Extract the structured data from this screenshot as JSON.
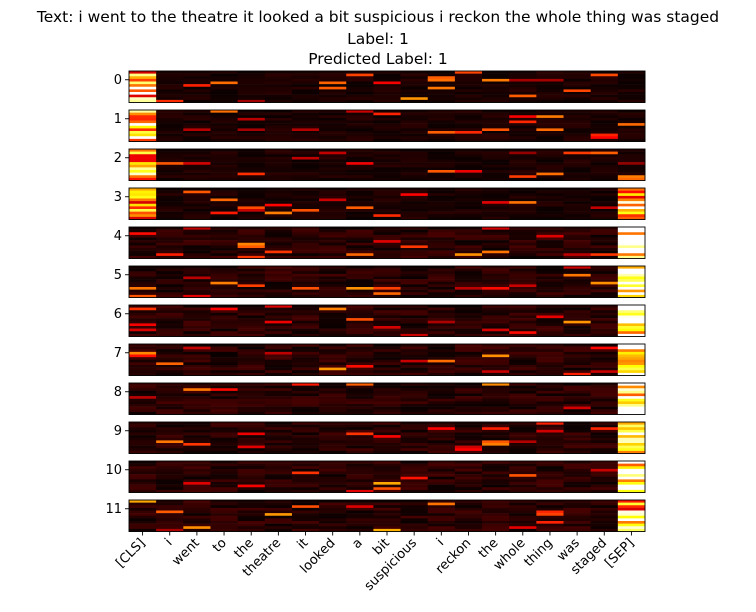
{
  "header": {
    "text_line": "Text: i went to the theatre it looked a bit suspicious i reckon the whole thing was staged",
    "label_line": "Label: 1",
    "predicted_line": "Predicted Label: 1"
  },
  "chart_data": {
    "type": "heatmap",
    "title": "Text: i went to the theatre it looked a bit suspicious i reckon the whole thing was staged",
    "subtitle": [
      "Label: 1",
      "Predicted Label: 1"
    ],
    "colormap": "hot",
    "layers": [
      "0",
      "1",
      "2",
      "3",
      "4",
      "5",
      "6",
      "7",
      "8",
      "9",
      "10",
      "11"
    ],
    "tokens": [
      "[CLS]",
      "i",
      "went",
      "to",
      "the",
      "theatre",
      "it",
      "looked",
      "a",
      "bit",
      "suspicious",
      "i",
      "reckon",
      "the",
      "whole",
      "thing",
      "was",
      "staged",
      "[SEP]"
    ],
    "rows_per_layer": 12,
    "dominant_attention": [
      {
        "layer": "0",
        "token": "[CLS]",
        "level": "high"
      },
      {
        "layer": "1",
        "token": "[CLS]",
        "level": "high"
      },
      {
        "layer": "2",
        "token": "[CLS]",
        "level": "high"
      },
      {
        "layer": "3",
        "token": "[CLS]",
        "level": "high"
      },
      {
        "layer": "3",
        "token": "[SEP]",
        "level": "high"
      },
      {
        "layer": "4",
        "token": "[SEP]",
        "level": "very high"
      },
      {
        "layer": "5",
        "token": "[SEP]",
        "level": "very high"
      },
      {
        "layer": "6",
        "token": "[SEP]",
        "level": "very high"
      },
      {
        "layer": "7",
        "token": "[SEP]",
        "level": "very high"
      },
      {
        "layer": "8",
        "token": "[SEP]",
        "level": "very high"
      },
      {
        "layer": "9",
        "token": "[SEP]",
        "level": "very high"
      },
      {
        "layer": "10",
        "token": "[SEP]",
        "level": "very high"
      },
      {
        "layer": "11",
        "token": "[SEP]",
        "level": "high"
      }
    ]
  }
}
